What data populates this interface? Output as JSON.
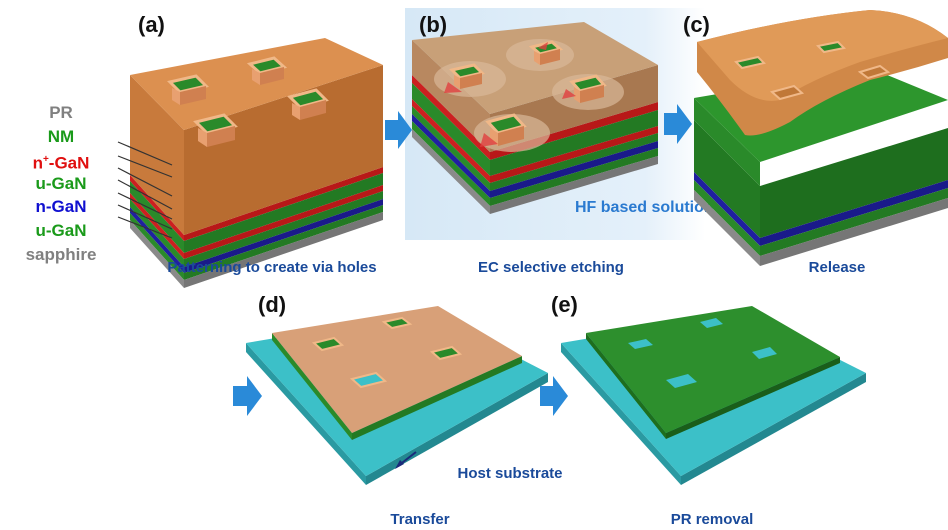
{
  "panel_labels": {
    "a": "(a)",
    "b": "(b)",
    "c": "(c)",
    "d": "(d)",
    "e": "(e)"
  },
  "captions": {
    "a": "Patterning to create via holes",
    "b": "EC selective etching",
    "c": "Release",
    "d": "Transfer",
    "e": "PR removal"
  },
  "annotations": {
    "hf_solution": "HF based solution",
    "host_substrate": "Host substrate"
  },
  "layers": [
    {
      "name": "PR",
      "color": "#808080"
    },
    {
      "name": "NM",
      "color": "#1a9a1a"
    },
    {
      "name_main": "n",
      "name_sup": "+",
      "name_rest": "-GaN",
      "color": "#e01010"
    },
    {
      "name": "u-GaN",
      "color": "#1a9a1a"
    },
    {
      "name": "n-GaN",
      "color": "#1010d0"
    },
    {
      "name": "u-GaN",
      "color": "#1a9a1a"
    },
    {
      "name": "sapphire",
      "color": "#808080"
    }
  ],
  "colors": {
    "pr_orange": "#d98a4a",
    "green": "#2a8a2a",
    "red": "#cc2020",
    "blue": "#2020a0",
    "gray": "#8a8a8a",
    "teal": "#3cc0c8",
    "arrow": "#2a8ad8",
    "caption": "#1a4a9a",
    "hf_bg": "#dcecf8"
  }
}
